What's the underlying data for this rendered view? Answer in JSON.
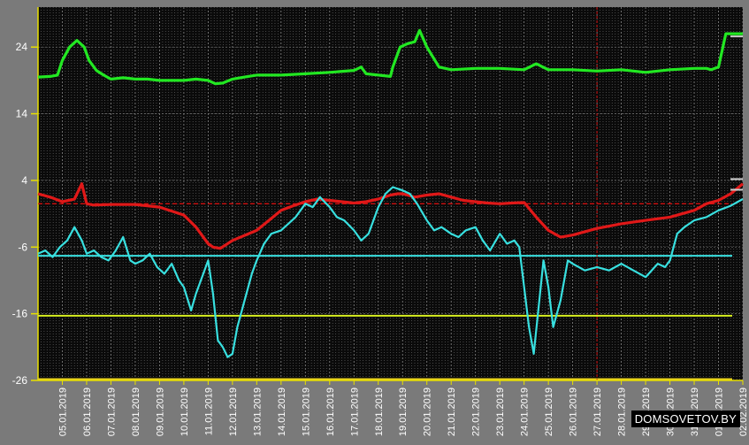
{
  "chart_data": {
    "type": "line",
    "title": "",
    "xlabel": "",
    "ylabel": "",
    "ylim": [
      -26,
      30
    ],
    "yticks": [
      24,
      14,
      4,
      -6,
      -16,
      -26
    ],
    "grid": true,
    "x_tick_labels": [
      "05.01.2019",
      "06.01.2019",
      "07.01.2019",
      "08.01.2019",
      "09.01.2019",
      "10.01.2019",
      "11.01.2019",
      "12.01.2019",
      "13.01.2019",
      "14.01.2019",
      "15.01.2019",
      "16.01.2019",
      "17.01.2019",
      "18.01.2019",
      "19.01.2019",
      "20.01.2019",
      "21.01.2019",
      "22.01.2019",
      "23.01.2019",
      "24.01.2019",
      "25.01.2019",
      "26.01.2019",
      "27.01.2019",
      "28.01.2019",
      "29.01.2019",
      "30.01.2019",
      "31.01.2019",
      "01.02.2019",
      "02.02.2019"
    ],
    "x_range_days": [
      4.0,
      33.0
    ],
    "current_time_marker_x": 27.0,
    "reference_lines": [
      {
        "y": 0.5,
        "color": "#d01010",
        "style": "dashed"
      },
      {
        "y": -7.3,
        "color": "#38e0e0",
        "style": "solid"
      },
      {
        "y": -16.3,
        "color": "#d8f020",
        "style": "solid"
      },
      {
        "y": -25.8,
        "color": "#e8d020",
        "style": "solid"
      }
    ],
    "series": [
      {
        "color": "#22e822",
        "x": [
          4.0,
          4.5,
          4.8,
          5.0,
          5.3,
          5.6,
          5.9,
          6.1,
          6.4,
          6.7,
          7.0,
          7.5,
          8.0,
          8.5,
          9.0,
          10.0,
          10.5,
          11.0,
          11.3,
          11.6,
          12.0,
          12.5,
          13.0,
          14.0,
          15.0,
          16.0,
          17.0,
          17.3,
          17.5,
          18.0,
          18.5,
          18.6,
          18.9,
          19.2,
          19.5,
          19.7,
          20.0,
          20.5,
          21.0,
          22.0,
          23.0,
          24.0,
          24.5,
          25.0,
          26.0,
          27.0,
          28.0,
          29.0,
          30.0,
          31.0,
          31.5,
          31.7,
          32.0,
          32.3,
          33.0
        ],
        "y": [
          19.5,
          19.6,
          19.8,
          22.0,
          24.0,
          25.0,
          24.0,
          22.0,
          20.5,
          19.8,
          19.2,
          19.4,
          19.2,
          19.2,
          19.0,
          19.0,
          19.2,
          19.0,
          18.5,
          18.6,
          19.2,
          19.5,
          19.8,
          19.8,
          20.0,
          20.2,
          20.5,
          21.0,
          20.0,
          19.8,
          19.6,
          21.0,
          24.0,
          24.5,
          24.8,
          26.5,
          24.0,
          21.0,
          20.6,
          20.8,
          20.8,
          20.6,
          21.5,
          20.6,
          20.6,
          20.4,
          20.6,
          20.2,
          20.6,
          20.8,
          20.8,
          20.6,
          21.0,
          26.0,
          26.0
        ]
      },
      {
        "color": "#e01818",
        "x": [
          4.0,
          4.5,
          5.0,
          5.5,
          5.8,
          6.0,
          6.3,
          7.0,
          8.0,
          9.0,
          10.0,
          10.5,
          10.8,
          11.0,
          11.2,
          11.5,
          12.0,
          13.0,
          13.5,
          14.0,
          14.5,
          15.0,
          15.5,
          16.0,
          16.5,
          17.0,
          17.5,
          18.0,
          18.5,
          18.8,
          19.0,
          19.2,
          19.5,
          20.0,
          20.5,
          21.0,
          21.5,
          22.0,
          22.5,
          23.0,
          23.5,
          24.0,
          24.5,
          25.0,
          25.5,
          26.0,
          27.0,
          28.0,
          29.0,
          30.0,
          31.0,
          31.5,
          32.0,
          32.5,
          33.0
        ],
        "y": [
          2.0,
          1.5,
          0.8,
          1.2,
          3.5,
          0.5,
          0.3,
          0.4,
          0.4,
          0.0,
          -1.2,
          -3.0,
          -4.5,
          -5.5,
          -6.0,
          -6.2,
          -5.0,
          -3.5,
          -2.0,
          -0.5,
          0.2,
          0.8,
          1.2,
          1.0,
          0.8,
          0.6,
          0.8,
          1.2,
          1.8,
          2.0,
          2.0,
          1.8,
          1.5,
          1.8,
          2.0,
          1.5,
          1.0,
          0.8,
          0.6,
          0.5,
          0.6,
          0.7,
          -1.5,
          -3.5,
          -4.5,
          -4.2,
          -3.2,
          -2.5,
          -2.0,
          -1.5,
          -0.5,
          0.5,
          1.0,
          2.0,
          3.5
        ]
      },
      {
        "color": "#38e0e0",
        "x": [
          4.0,
          4.3,
          4.6,
          4.9,
          5.2,
          5.5,
          5.8,
          6.0,
          6.3,
          6.6,
          6.9,
          7.2,
          7.5,
          7.8,
          8.0,
          8.3,
          8.6,
          8.9,
          9.2,
          9.5,
          9.8,
          10.0,
          10.3,
          10.5,
          10.8,
          11.0,
          11.2,
          11.4,
          11.6,
          11.8,
          12.0,
          12.2,
          12.5,
          12.8,
          13.0,
          13.3,
          13.6,
          14.0,
          14.3,
          14.6,
          15.0,
          15.3,
          15.6,
          16.0,
          16.3,
          16.6,
          17.0,
          17.3,
          17.6,
          18.0,
          18.3,
          18.6,
          19.0,
          19.3,
          19.6,
          20.0,
          20.3,
          20.6,
          21.0,
          21.3,
          21.6,
          22.0,
          22.3,
          22.6,
          23.0,
          23.3,
          23.6,
          23.8,
          24.0,
          24.2,
          24.4,
          24.6,
          24.8,
          25.0,
          25.2,
          25.5,
          25.8,
          26.0,
          26.5,
          27.0,
          27.5,
          28.0,
          28.5,
          29.0,
          29.5,
          29.8,
          30.0,
          30.3,
          30.6,
          31.0,
          31.5,
          32.0,
          32.5,
          33.0
        ],
        "y": [
          -7.0,
          -6.5,
          -7.5,
          -6.0,
          -5.0,
          -3.0,
          -5.0,
          -7.0,
          -6.5,
          -7.5,
          -8.0,
          -6.5,
          -4.5,
          -8.0,
          -8.5,
          -8.0,
          -7.0,
          -9.0,
          -10.0,
          -8.5,
          -11.0,
          -12.0,
          -15.5,
          -13.0,
          -10.0,
          -8.0,
          -13.0,
          -20.0,
          -21.0,
          -22.5,
          -22.0,
          -18.0,
          -14.0,
          -10.0,
          -8.0,
          -5.5,
          -4.0,
          -3.5,
          -2.5,
          -1.5,
          0.5,
          0.0,
          1.5,
          0.0,
          -1.5,
          -2.0,
          -3.5,
          -5.0,
          -4.0,
          0.0,
          2.0,
          3.0,
          2.5,
          2.0,
          0.5,
          -2.0,
          -3.5,
          -3.0,
          -4.0,
          -4.5,
          -3.5,
          -3.0,
          -5.0,
          -6.5,
          -4.0,
          -5.5,
          -5.0,
          -6.0,
          -12.0,
          -18.0,
          -22.0,
          -15.0,
          -8.0,
          -12.0,
          -18.0,
          -14.0,
          -8.0,
          -8.5,
          -9.5,
          -9.0,
          -9.5,
          -8.5,
          -9.5,
          -10.5,
          -8.5,
          -9.0,
          -8.0,
          -4.0,
          -3.0,
          -2.0,
          -1.5,
          -0.5,
          0.2,
          1.2
        ]
      }
    ]
  },
  "watermark": "DOMSOVETOV.BY"
}
